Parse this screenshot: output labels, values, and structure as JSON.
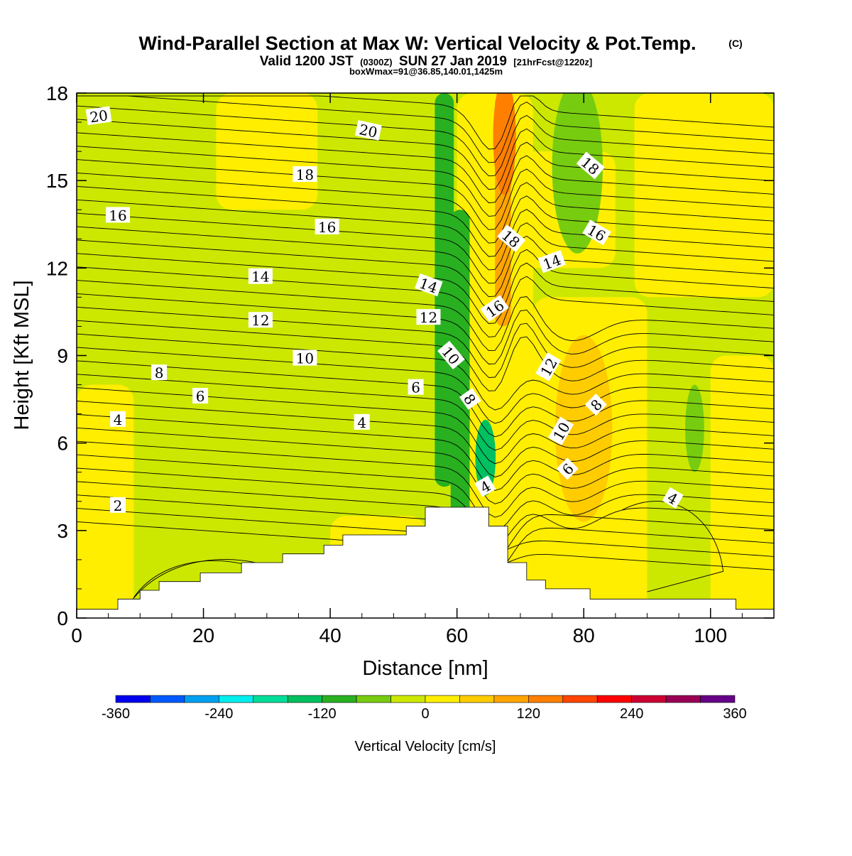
{
  "titles": {
    "main": "Wind-Parallel Section at Max W: Vertical Velocity & Pot.Temp.",
    "main_suffix": "(C)",
    "valid_a": "Valid 1200 JST",
    "valid_small": "(0300Z)",
    "valid_b": "SUN 27 Jan 2019",
    "valid_fcst": "[21hrFcst@1220z]",
    "box": "boxWmax=91@36.85,140.01,1425m"
  },
  "chart_data": {
    "type": "heatmap",
    "title": "Wind-Parallel Section at Max W: Vertical Velocity & Pot.Temp.",
    "xlabel": "Distance [nm]",
    "ylabel": "Height [Kft MSL]",
    "xlim": [
      0,
      110
    ],
    "ylim": [
      0,
      18
    ],
    "x_ticks": [
      "0",
      "20",
      "40",
      "60",
      "80",
      "100"
    ],
    "y_ticks": [
      "0",
      "3",
      "6",
      "9",
      "12",
      "15",
      "18"
    ],
    "colorbar": {
      "label": "Vertical Velocity [cm/s]",
      "tick_labels": [
        "-360",
        "-240",
        "-120",
        "0",
        "120",
        "240",
        "360"
      ],
      "range": [
        -360,
        360
      ],
      "step": 40,
      "colors": [
        "#0000ee",
        "#0059ff",
        "#00a0f0",
        "#00eeee",
        "#00dd99",
        "#00c060",
        "#28b020",
        "#78cc10",
        "#cce800",
        "#ffee00",
        "#ffcc00",
        "#ffa500",
        "#ff7f00",
        "#ff4500",
        "#ff0000",
        "#cc0033",
        "#990055",
        "#660088"
      ]
    },
    "terrain_kft": [
      [
        0,
        0.3
      ],
      [
        6.5,
        0.3
      ],
      [
        6.5,
        0.65
      ],
      [
        10,
        0.65
      ],
      [
        10,
        0.95
      ],
      [
        13,
        0.95
      ],
      [
        13,
        1.25
      ],
      [
        19.5,
        1.25
      ],
      [
        19.5,
        1.55
      ],
      [
        26,
        1.55
      ],
      [
        26,
        1.9
      ],
      [
        32.5,
        1.9
      ],
      [
        32.5,
        2.2
      ],
      [
        39,
        2.2
      ],
      [
        39,
        2.5
      ],
      [
        42,
        2.5
      ],
      [
        42,
        2.85
      ],
      [
        52,
        2.85
      ],
      [
        52,
        3.15
      ],
      [
        55,
        3.15
      ],
      [
        55,
        3.8
      ],
      [
        65,
        3.8
      ],
      [
        65,
        3.15
      ],
      [
        68,
        3.15
      ],
      [
        68,
        1.9
      ],
      [
        71,
        1.9
      ],
      [
        71,
        1.3
      ],
      [
        74,
        1.3
      ],
      [
        74,
        1.0
      ],
      [
        81,
        1.0
      ],
      [
        81,
        0.65
      ],
      [
        104,
        0.65
      ],
      [
        104,
        0.3
      ],
      [
        110,
        0.3
      ]
    ],
    "w_regions": [
      {
        "value": -100,
        "shape": "band",
        "x0": 56.5,
        "x1": 59.5,
        "y0": 4.5,
        "y1": 18
      },
      {
        "value": -120,
        "shape": "band",
        "x0": 59,
        "x1": 62,
        "y0": 2,
        "y1": 14
      },
      {
        "value": -160,
        "shape": "blob",
        "x": 64.5,
        "y": 5.5,
        "rx": 1.6,
        "ry": 1.3
      },
      {
        "value": -80,
        "shape": "blob",
        "x": 79,
        "y": 15.5,
        "rx": 4,
        "ry": 3
      },
      {
        "value": -80,
        "shape": "blob",
        "x": 97.5,
        "y": 6.5,
        "rx": 1.5,
        "ry": 1.5
      },
      {
        "value": 80,
        "shape": "band",
        "x0": 66,
        "x1": 68.5,
        "y0": 10,
        "y1": 18
      },
      {
        "value": 120,
        "shape": "blob",
        "x": 67.5,
        "y": 16.5,
        "rx": 1.8,
        "ry": 2
      },
      {
        "value": 60,
        "shape": "blob",
        "x": 80,
        "y": 6.5,
        "rx": 4.5,
        "ry": 3.2
      }
    ],
    "theta_contours": {
      "unit": "C",
      "labels": [
        {
          "text": "20",
          "x": 3.5,
          "y": 17.2,
          "angle": -8
        },
        {
          "text": "20",
          "x": 46,
          "y": 16.7,
          "angle": 12
        },
        {
          "text": "18",
          "x": 36,
          "y": 15.2,
          "angle": 0
        },
        {
          "text": "18",
          "x": 68.5,
          "y": 13.0,
          "angle": 40
        },
        {
          "text": "18",
          "x": 81,
          "y": 15.5,
          "angle": 40
        },
        {
          "text": "16",
          "x": 6.5,
          "y": 13.8,
          "angle": 0
        },
        {
          "text": "16",
          "x": 39.5,
          "y": 13.4,
          "angle": 0
        },
        {
          "text": "16",
          "x": 66,
          "y": 10.6,
          "angle": -35
        },
        {
          "text": "16",
          "x": 82,
          "y": 13.2,
          "angle": 30
        },
        {
          "text": "14",
          "x": 29,
          "y": 11.7,
          "angle": 0
        },
        {
          "text": "14",
          "x": 55.5,
          "y": 11.4,
          "angle": 20
        },
        {
          "text": "14",
          "x": 75,
          "y": 12.2,
          "angle": -20
        },
        {
          "text": "12",
          "x": 29,
          "y": 10.2,
          "angle": 0
        },
        {
          "text": "12",
          "x": 55.5,
          "y": 10.3,
          "angle": 0
        },
        {
          "text": "12",
          "x": 74.5,
          "y": 8.6,
          "angle": -60
        },
        {
          "text": "10",
          "x": 36,
          "y": 8.9,
          "angle": 0
        },
        {
          "text": "10",
          "x": 59,
          "y": 9.0,
          "angle": 50
        },
        {
          "text": "10",
          "x": 76.5,
          "y": 6.4,
          "angle": -60
        },
        {
          "text": "8",
          "x": 13,
          "y": 8.4,
          "angle": 0
        },
        {
          "text": "8",
          "x": 62,
          "y": 7.5,
          "angle": 55
        },
        {
          "text": "8",
          "x": 82,
          "y": 7.3,
          "angle": -45
        },
        {
          "text": "6",
          "x": 19.5,
          "y": 7.6,
          "angle": 0
        },
        {
          "text": "6",
          "x": 53.5,
          "y": 7.9,
          "angle": 0
        },
        {
          "text": "6",
          "x": 77.5,
          "y": 5.1,
          "angle": -45
        },
        {
          "text": "4",
          "x": 6.5,
          "y": 6.8,
          "angle": 0
        },
        {
          "text": "4",
          "x": 45,
          "y": 6.7,
          "angle": 0
        },
        {
          "text": "4",
          "x": 64.5,
          "y": 4.5,
          "angle": -30
        },
        {
          "text": "4",
          "x": 94,
          "y": 4.1,
          "angle": 30
        },
        {
          "text": "2",
          "x": 6.5,
          "y": 3.85,
          "angle": 0
        }
      ]
    }
  }
}
